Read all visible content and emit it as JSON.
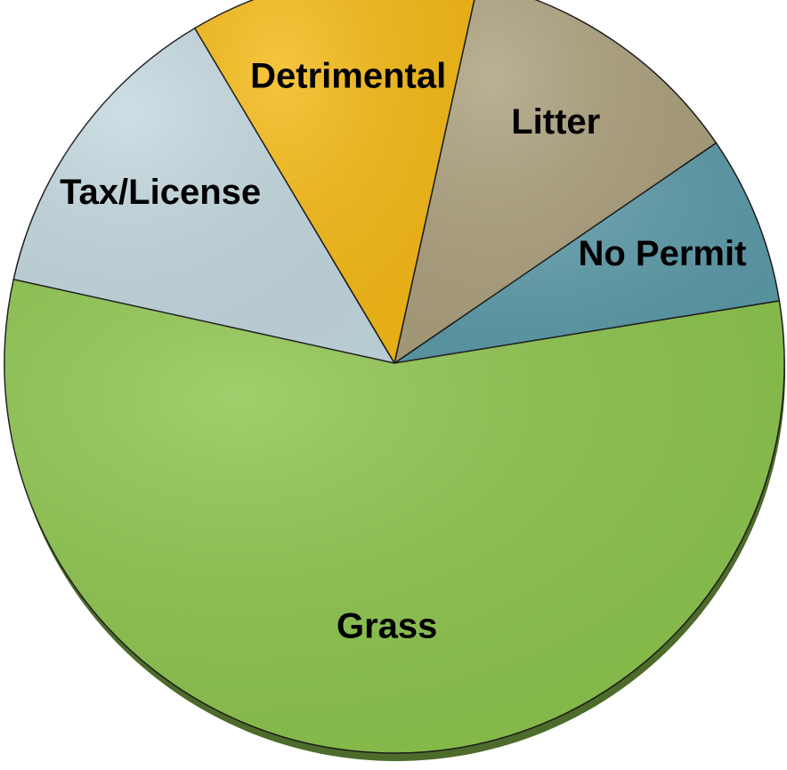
{
  "chart_data": {
    "type": "pie",
    "categories": [
      "No Permit",
      "Litter",
      "Detrimental",
      "Tax/License",
      "Grass"
    ],
    "values": [
      7,
      12,
      12,
      13,
      56
    ],
    "colors": [
      "#5b9aa8",
      "#ab9f7c",
      "#f5b914",
      "#c3d8df",
      "#8cc44c"
    ]
  }
}
